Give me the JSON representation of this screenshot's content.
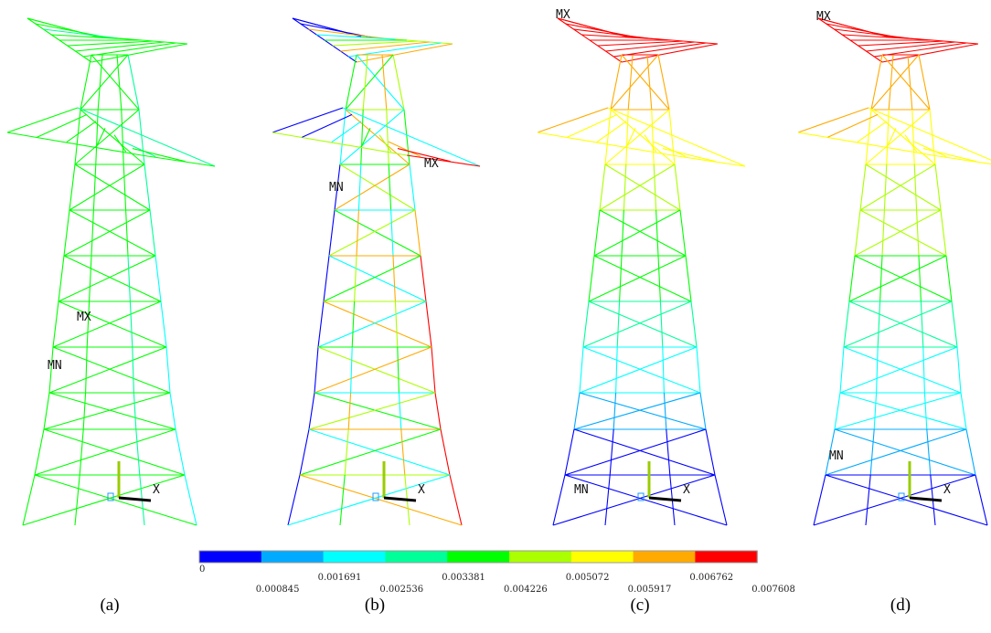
{
  "panels": [
    {
      "label": "(a)",
      "mx": "MX",
      "mn": "MN",
      "axis": "X"
    },
    {
      "label": "(b)",
      "mx": "MX",
      "mn": "MN",
      "axis": "X"
    },
    {
      "label": "(c)",
      "mx": "MX",
      "mn": "MN",
      "axis": "X"
    },
    {
      "label": "(d)",
      "mx": "MX",
      "mn": "MN",
      "axis": "X"
    }
  ],
  "colorbar": {
    "colors": [
      "#0000ff",
      "#00aaff",
      "#00ffff",
      "#00ff99",
      "#00ff00",
      "#aaff00",
      "#ffff00",
      "#ffaa00",
      "#ff0000"
    ],
    "labels": [
      "0",
      "0.000845",
      "0.001691",
      "0.002536",
      "0.003381",
      "0.004226",
      "0.005072",
      "0.005917",
      "0.006762",
      "0.007608"
    ]
  }
}
